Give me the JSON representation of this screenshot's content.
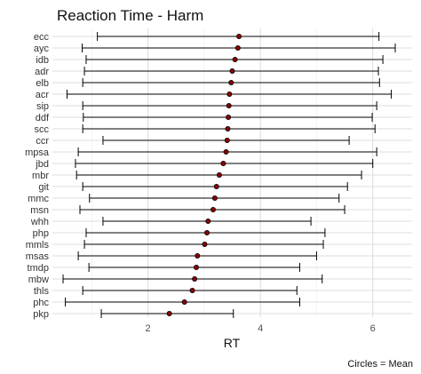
{
  "chart_data": {
    "type": "errorbar",
    "title": "Reaction Time - Harm",
    "xlabel": "RT",
    "ylabel": "",
    "caption": "Circles = Mean",
    "xlim": [
      0.3,
      6.7
    ],
    "xticks": [
      "2",
      "4",
      "6"
    ],
    "xtick_values": [
      2,
      4,
      6
    ],
    "grid": true,
    "point_color": "#8b0000",
    "categories": [
      "ecc",
      "ayc",
      "idb",
      "adr",
      "elb",
      "acr",
      "sip",
      "ddf",
      "scc",
      "ccr",
      "mpsa",
      "jbd",
      "mbr",
      "git",
      "mmc",
      "msn",
      "whh",
      "php",
      "mmls",
      "msas",
      "tmdp",
      "mbw",
      "thls",
      "phc",
      "pkp"
    ],
    "mean": [
      3.62,
      3.6,
      3.55,
      3.5,
      3.48,
      3.45,
      3.44,
      3.43,
      3.42,
      3.41,
      3.39,
      3.34,
      3.27,
      3.22,
      3.19,
      3.16,
      3.07,
      3.05,
      3.01,
      2.88,
      2.86,
      2.83,
      2.79,
      2.65,
      2.38
    ],
    "low": [
      1.1,
      0.83,
      0.9,
      0.87,
      0.84,
      0.56,
      0.84,
      0.85,
      0.84,
      1.2,
      0.76,
      0.71,
      0.73,
      0.84,
      0.96,
      0.79,
      1.2,
      0.9,
      0.87,
      0.76,
      0.95,
      0.49,
      0.84,
      0.53,
      1.17
    ],
    "high": [
      6.11,
      6.4,
      6.18,
      6.1,
      6.12,
      6.33,
      6.07,
      5.99,
      6.04,
      5.58,
      6.07,
      6.0,
      5.8,
      5.55,
      5.4,
      5.5,
      4.9,
      5.15,
      5.12,
      5.0,
      4.7,
      5.1,
      4.65,
      4.7,
      3.52
    ]
  }
}
